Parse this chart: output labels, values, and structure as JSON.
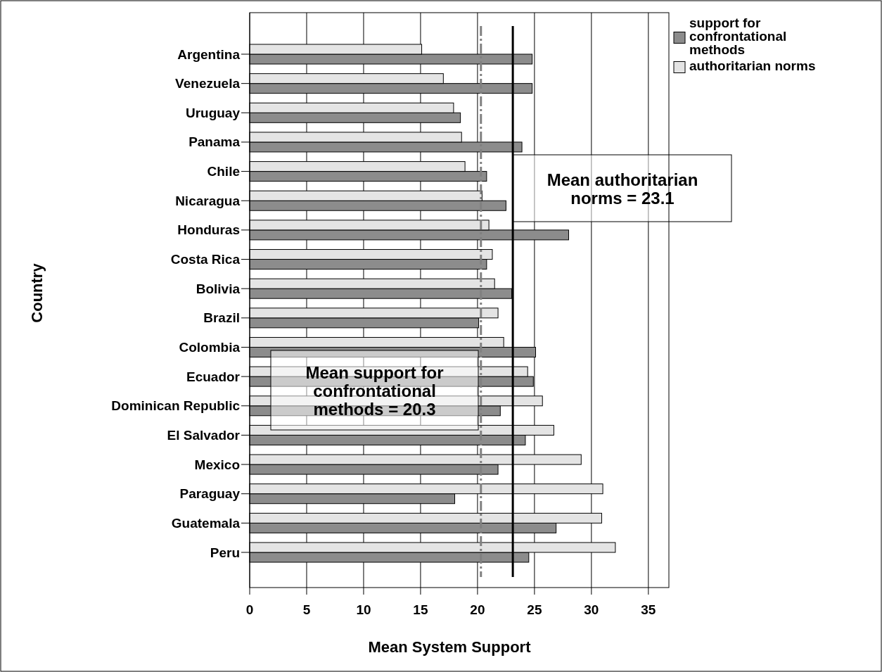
{
  "chart_data": {
    "type": "bar",
    "orientation": "horizontal",
    "xlabel": "Mean System Support",
    "ylabel": "Country",
    "categories": [
      "Argentina",
      "Venezuela",
      "Uruguay",
      "Panama",
      "Chile",
      "Nicaragua",
      "Honduras",
      "Costa Rica",
      "Bolivia",
      "Brazil",
      "Colombia",
      "Ecuador",
      "Dominican Republic",
      "El Salvador",
      "Mexico",
      "Paraguay",
      "Guatemala",
      "Peru"
    ],
    "series": [
      {
        "name": "support for confrontational methods",
        "color": "#8c8c8c",
        "values": [
          24.8,
          24.8,
          18.5,
          23.9,
          20.8,
          22.5,
          28.0,
          20.8,
          23.0,
          20.1,
          25.1,
          24.9,
          22.0,
          24.2,
          21.8,
          18.0,
          26.9,
          24.5
        ]
      },
      {
        "name": "authoritarian norms",
        "color": "#e4e4e4",
        "values": [
          15.1,
          17.0,
          17.9,
          18.6,
          18.9,
          20.4,
          21.0,
          21.3,
          21.5,
          21.8,
          22.3,
          24.4,
          25.7,
          26.7,
          29.1,
          31.0,
          30.9,
          32.1
        ]
      }
    ],
    "xlim": [
      0,
      36.8
    ],
    "xticks": [
      0,
      5,
      10,
      15,
      20,
      25,
      30,
      35
    ],
    "grid": "x",
    "legend": "top right",
    "ref_lines": [
      {
        "axis": "x",
        "value": 20.3,
        "label": "Mean support for confrontational methods = 20.3",
        "color": "#808080",
        "line_style": "dashed"
      },
      {
        "axis": "x",
        "value": 23.1,
        "label": "Mean authoritarian norms = 23.1",
        "color": "#000000",
        "line_style": "solid"
      }
    ]
  }
}
